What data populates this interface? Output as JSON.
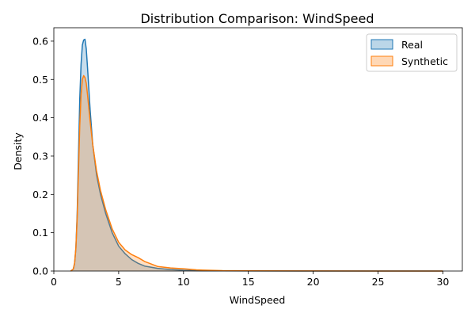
{
  "chart_data": {
    "type": "area",
    "title": "Distribution Comparison: WindSpeed",
    "xlabel": "WindSpeed",
    "ylabel": "Density",
    "xlim": [
      0,
      31.5
    ],
    "ylim": [
      0,
      0.635
    ],
    "xticks": [
      0,
      5,
      10,
      15,
      20,
      25,
      30
    ],
    "yticks": [
      0.0,
      0.1,
      0.2,
      0.3,
      0.4,
      0.5,
      0.6
    ],
    "xtick_labels": [
      "0",
      "5",
      "10",
      "15",
      "20",
      "25",
      "30"
    ],
    "ytick_labels": [
      "0.0",
      "0.1",
      "0.2",
      "0.3",
      "0.4",
      "0.5",
      "0.6"
    ],
    "legend_position": "top-right",
    "grid": false,
    "series": [
      {
        "name": "Real",
        "color": "#1f77b4",
        "x": [
          1.3,
          1.5,
          1.6,
          1.7,
          1.8,
          1.9,
          2.0,
          2.1,
          2.2,
          2.3,
          2.4,
          2.5,
          2.6,
          2.8,
          3.0,
          3.3,
          3.6,
          4.0,
          4.5,
          5.0,
          5.5,
          6.0,
          6.5,
          7.0,
          8.0,
          9.0,
          10.0,
          11.0,
          13.0,
          15.0,
          20.0,
          25.0,
          30.0
        ],
        "y": [
          0.0,
          0.005,
          0.02,
          0.06,
          0.15,
          0.3,
          0.45,
          0.54,
          0.59,
          0.603,
          0.605,
          0.58,
          0.53,
          0.42,
          0.33,
          0.25,
          0.2,
          0.15,
          0.1,
          0.065,
          0.045,
          0.03,
          0.02,
          0.013,
          0.007,
          0.004,
          0.002,
          0.001,
          0.0005,
          0.0002,
          0.0001,
          0.0001,
          0.0
        ]
      },
      {
        "name": "Synthetic",
        "color": "#ff7f0e",
        "x": [
          1.3,
          1.5,
          1.6,
          1.7,
          1.8,
          1.9,
          2.0,
          2.1,
          2.2,
          2.3,
          2.4,
          2.5,
          2.6,
          2.8,
          3.0,
          3.3,
          3.6,
          4.0,
          4.5,
          5.0,
          5.5,
          6.0,
          6.5,
          7.0,
          8.0,
          9.0,
          10.0,
          11.0,
          13.0,
          15.0,
          20.0,
          25.0,
          30.0
        ],
        "y": [
          0.0,
          0.005,
          0.02,
          0.06,
          0.14,
          0.26,
          0.38,
          0.46,
          0.5,
          0.51,
          0.505,
          0.49,
          0.46,
          0.39,
          0.33,
          0.26,
          0.21,
          0.16,
          0.11,
          0.075,
          0.055,
          0.043,
          0.035,
          0.025,
          0.012,
          0.008,
          0.006,
          0.003,
          0.001,
          0.0005,
          0.0002,
          0.0001,
          0.0
        ]
      }
    ]
  }
}
